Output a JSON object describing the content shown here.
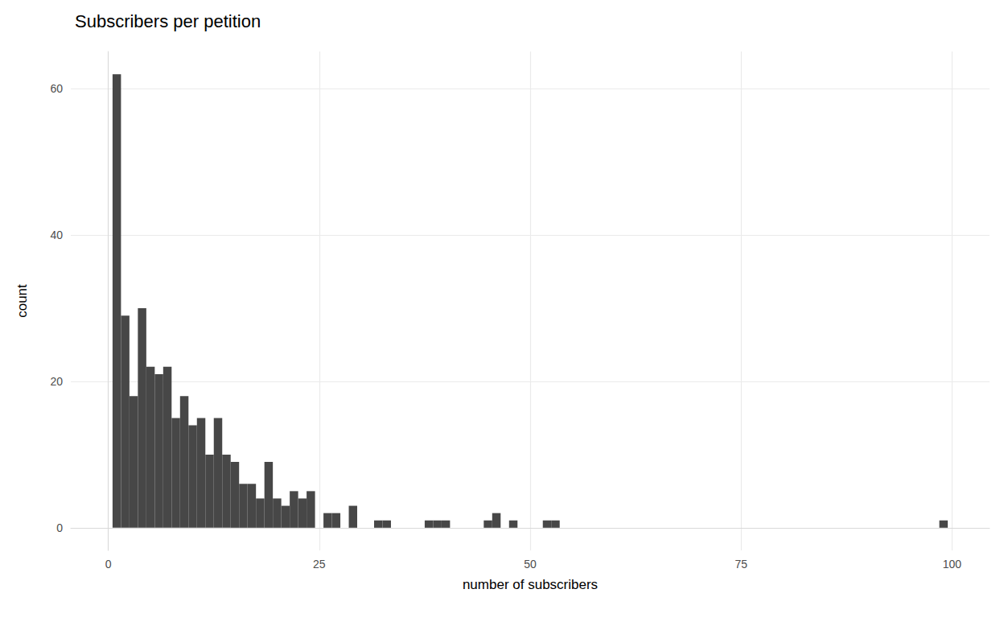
{
  "chart_data": {
    "type": "histogram",
    "title": "Subscribers per petition",
    "x_label": "number of subscribers",
    "y_label": "count",
    "bins": [
      0.5,
      1.5,
      2.5,
      3.5,
      4.5,
      5.5,
      6.5,
      7.5,
      8.5,
      9.5,
      10.5,
      11.5,
      12.5,
      13.5,
      14.5,
      15.5,
      16.5,
      17.5,
      18.5,
      19.5,
      20.5,
      21.5,
      22.5,
      23.5,
      24.5,
      25.5,
      26.5,
      27.5,
      28.5,
      29.5,
      30.5,
      31.5,
      32.5,
      33.5,
      34.5,
      35.5,
      36.5,
      37.5,
      38.5,
      39.5,
      40.5,
      41.5,
      42.5,
      43.5,
      44.5,
      45.5,
      46.5,
      47.5,
      48.5,
      49.5,
      50.5,
      51.5,
      52.5,
      53.5,
      54.5,
      55.5,
      56.5,
      57.5,
      58.5,
      59.5,
      60.5,
      61.5,
      62.5,
      63.5,
      64.5,
      65.5,
      66.5,
      67.5,
      68.5,
      69.5,
      70.5,
      71.5,
      72.5,
      73.5,
      74.5,
      75.5,
      76.5,
      77.5,
      78.5,
      79.5,
      80.5,
      81.5,
      82.5,
      83.5,
      84.5,
      85.5,
      86.5,
      87.5,
      88.5,
      89.5,
      90.5,
      91.5,
      92.5,
      93.5,
      94.5,
      95.5,
      96.5,
      97.5,
      98.5,
      99.5
    ],
    "counts": [
      62,
      29,
      18,
      30,
      22,
      21,
      22,
      15,
      18,
      14,
      15,
      10,
      15,
      10,
      9,
      6,
      6,
      4,
      9,
      4,
      3,
      5,
      4,
      5,
      0,
      2,
      2,
      0,
      3,
      0,
      0,
      1,
      1,
      0,
      0,
      0,
      0,
      1,
      1,
      1,
      0,
      0,
      0,
      0,
      1,
      2,
      0,
      1,
      0,
      0,
      0,
      1,
      1,
      0,
      0,
      0,
      0,
      0,
      0,
      0,
      0,
      0,
      0,
      0,
      0,
      0,
      0,
      0,
      0,
      0,
      0,
      0,
      0,
      0,
      0,
      0,
      0,
      0,
      0,
      0,
      0,
      0,
      0,
      0,
      0,
      0,
      0,
      0,
      0,
      0,
      0,
      0,
      0,
      0,
      0,
      0,
      0,
      0,
      1
    ],
    "color": "#474747",
    "xlim": [
      -4.45,
      104.45
    ],
    "xticks": [
      0,
      25,
      50,
      75,
      100
    ],
    "ylim": [
      -3.1,
      65.1
    ],
    "yticks": [
      0,
      20,
      40,
      60
    ],
    "grid": true
  }
}
